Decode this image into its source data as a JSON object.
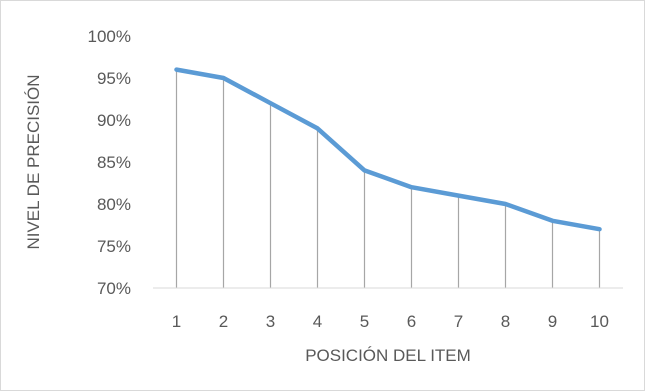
{
  "chart_data": {
    "type": "line",
    "x": [
      "1",
      "2",
      "3",
      "4",
      "5",
      "6",
      "7",
      "8",
      "9",
      "10"
    ],
    "series": [
      {
        "values": [
          0.96,
          0.95,
          0.92,
          0.89,
          0.84,
          0.82,
          0.81,
          0.8,
          0.78,
          0.77
        ]
      }
    ],
    "ylim": [
      0.7,
      1.0
    ],
    "yticks": [
      0.7,
      0.75,
      0.8,
      0.85,
      0.9,
      0.95,
      1.0
    ],
    "ytick_labels": [
      "70%",
      "75%",
      "80%",
      "85%",
      "90%",
      "95%",
      "100%"
    ],
    "xlabel": "POSICIÓN DEL ITEM",
    "ylabel": "NIVEL DE PRECISIÓN",
    "drop_lines": true,
    "grid": false,
    "line_color": "#5b9bd5",
    "drop_line_color": "#a6a6a6",
    "axis_color": "#d9d9d9"
  }
}
